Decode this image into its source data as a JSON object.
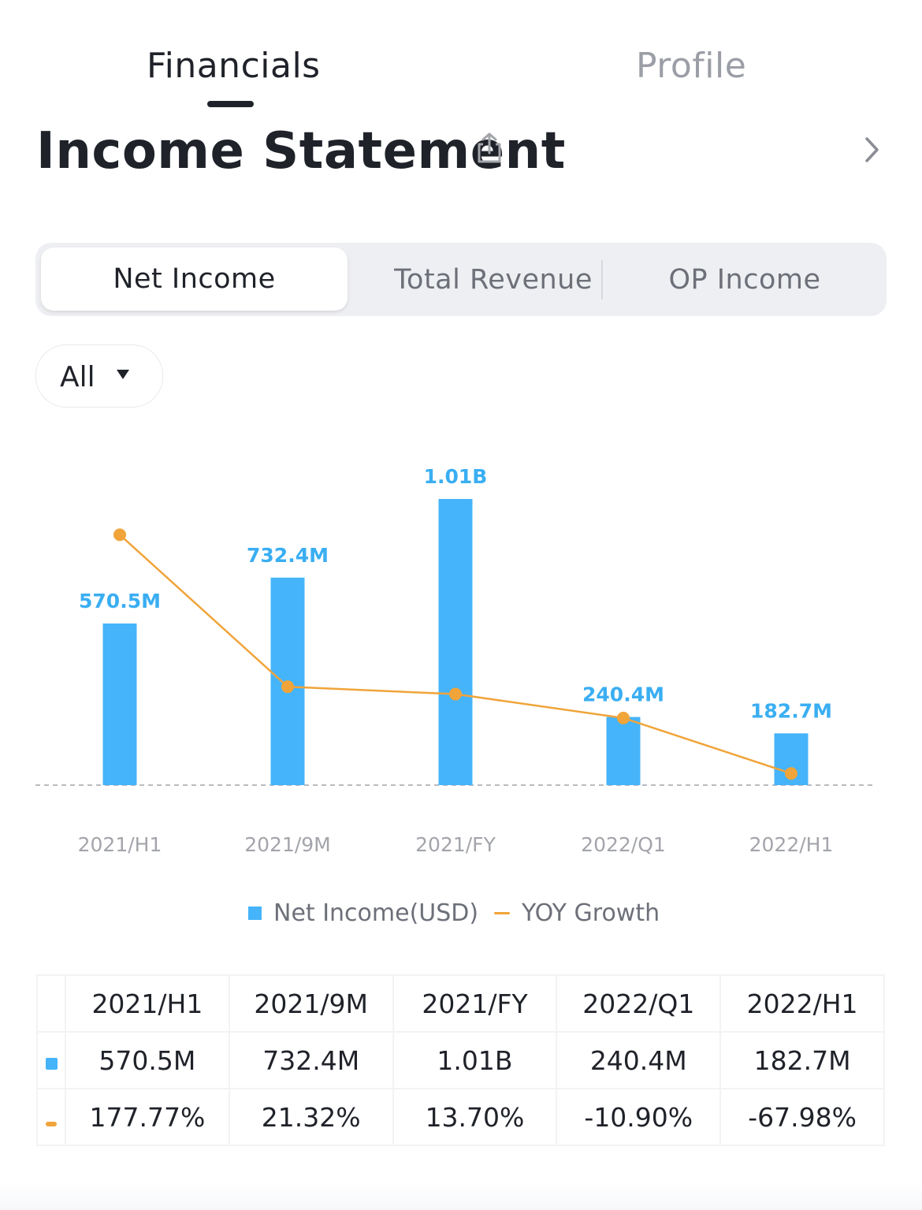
{
  "top_tabs": [
    {
      "label": "Financials",
      "active": true
    },
    {
      "label": "Profile",
      "active": false
    }
  ],
  "header": {
    "title": "Income Statement",
    "icons": [
      "share-icon",
      "chevron-right-icon"
    ]
  },
  "metric_tabs": [
    {
      "label": "Net Income",
      "active": true
    },
    {
      "label": "Total Revenue",
      "active": false
    },
    {
      "label": "OP Income",
      "active": false
    }
  ],
  "filter": {
    "label": "All",
    "icon": "caret-down-icon"
  },
  "colors": {
    "bar": "#45b4fa",
    "line": "#f0a43a",
    "positive": "#44b37a",
    "negative": "#e05a56"
  },
  "chart_data": {
    "type": "bar",
    "categories": [
      "2021/H1",
      "2021/9M",
      "2021/FY",
      "2022/Q1",
      "2022/H1"
    ],
    "series": [
      {
        "name": "Net Income(USD)",
        "type": "bar",
        "values": [
          570.5,
          732.4,
          1010,
          240.4,
          182.7
        ],
        "labels": [
          "570.5M",
          "732.4M",
          "1.01B",
          "240.4M",
          "182.7M"
        ]
      },
      {
        "name": "YOY Growth",
        "type": "line",
        "values": [
          177.77,
          21.32,
          13.7,
          -10.9,
          -67.98
        ],
        "labels": [
          "177.77%",
          "21.32%",
          "13.70%",
          "-10.90%",
          "-67.98%"
        ]
      }
    ],
    "bar_ylim": [
      0,
      1010
    ],
    "line_ylim": [
      -80,
      200
    ],
    "legend": "bottom",
    "grid": false
  },
  "legend": {
    "bars": "Net Income(USD)",
    "line": "YOY Growth"
  }
}
